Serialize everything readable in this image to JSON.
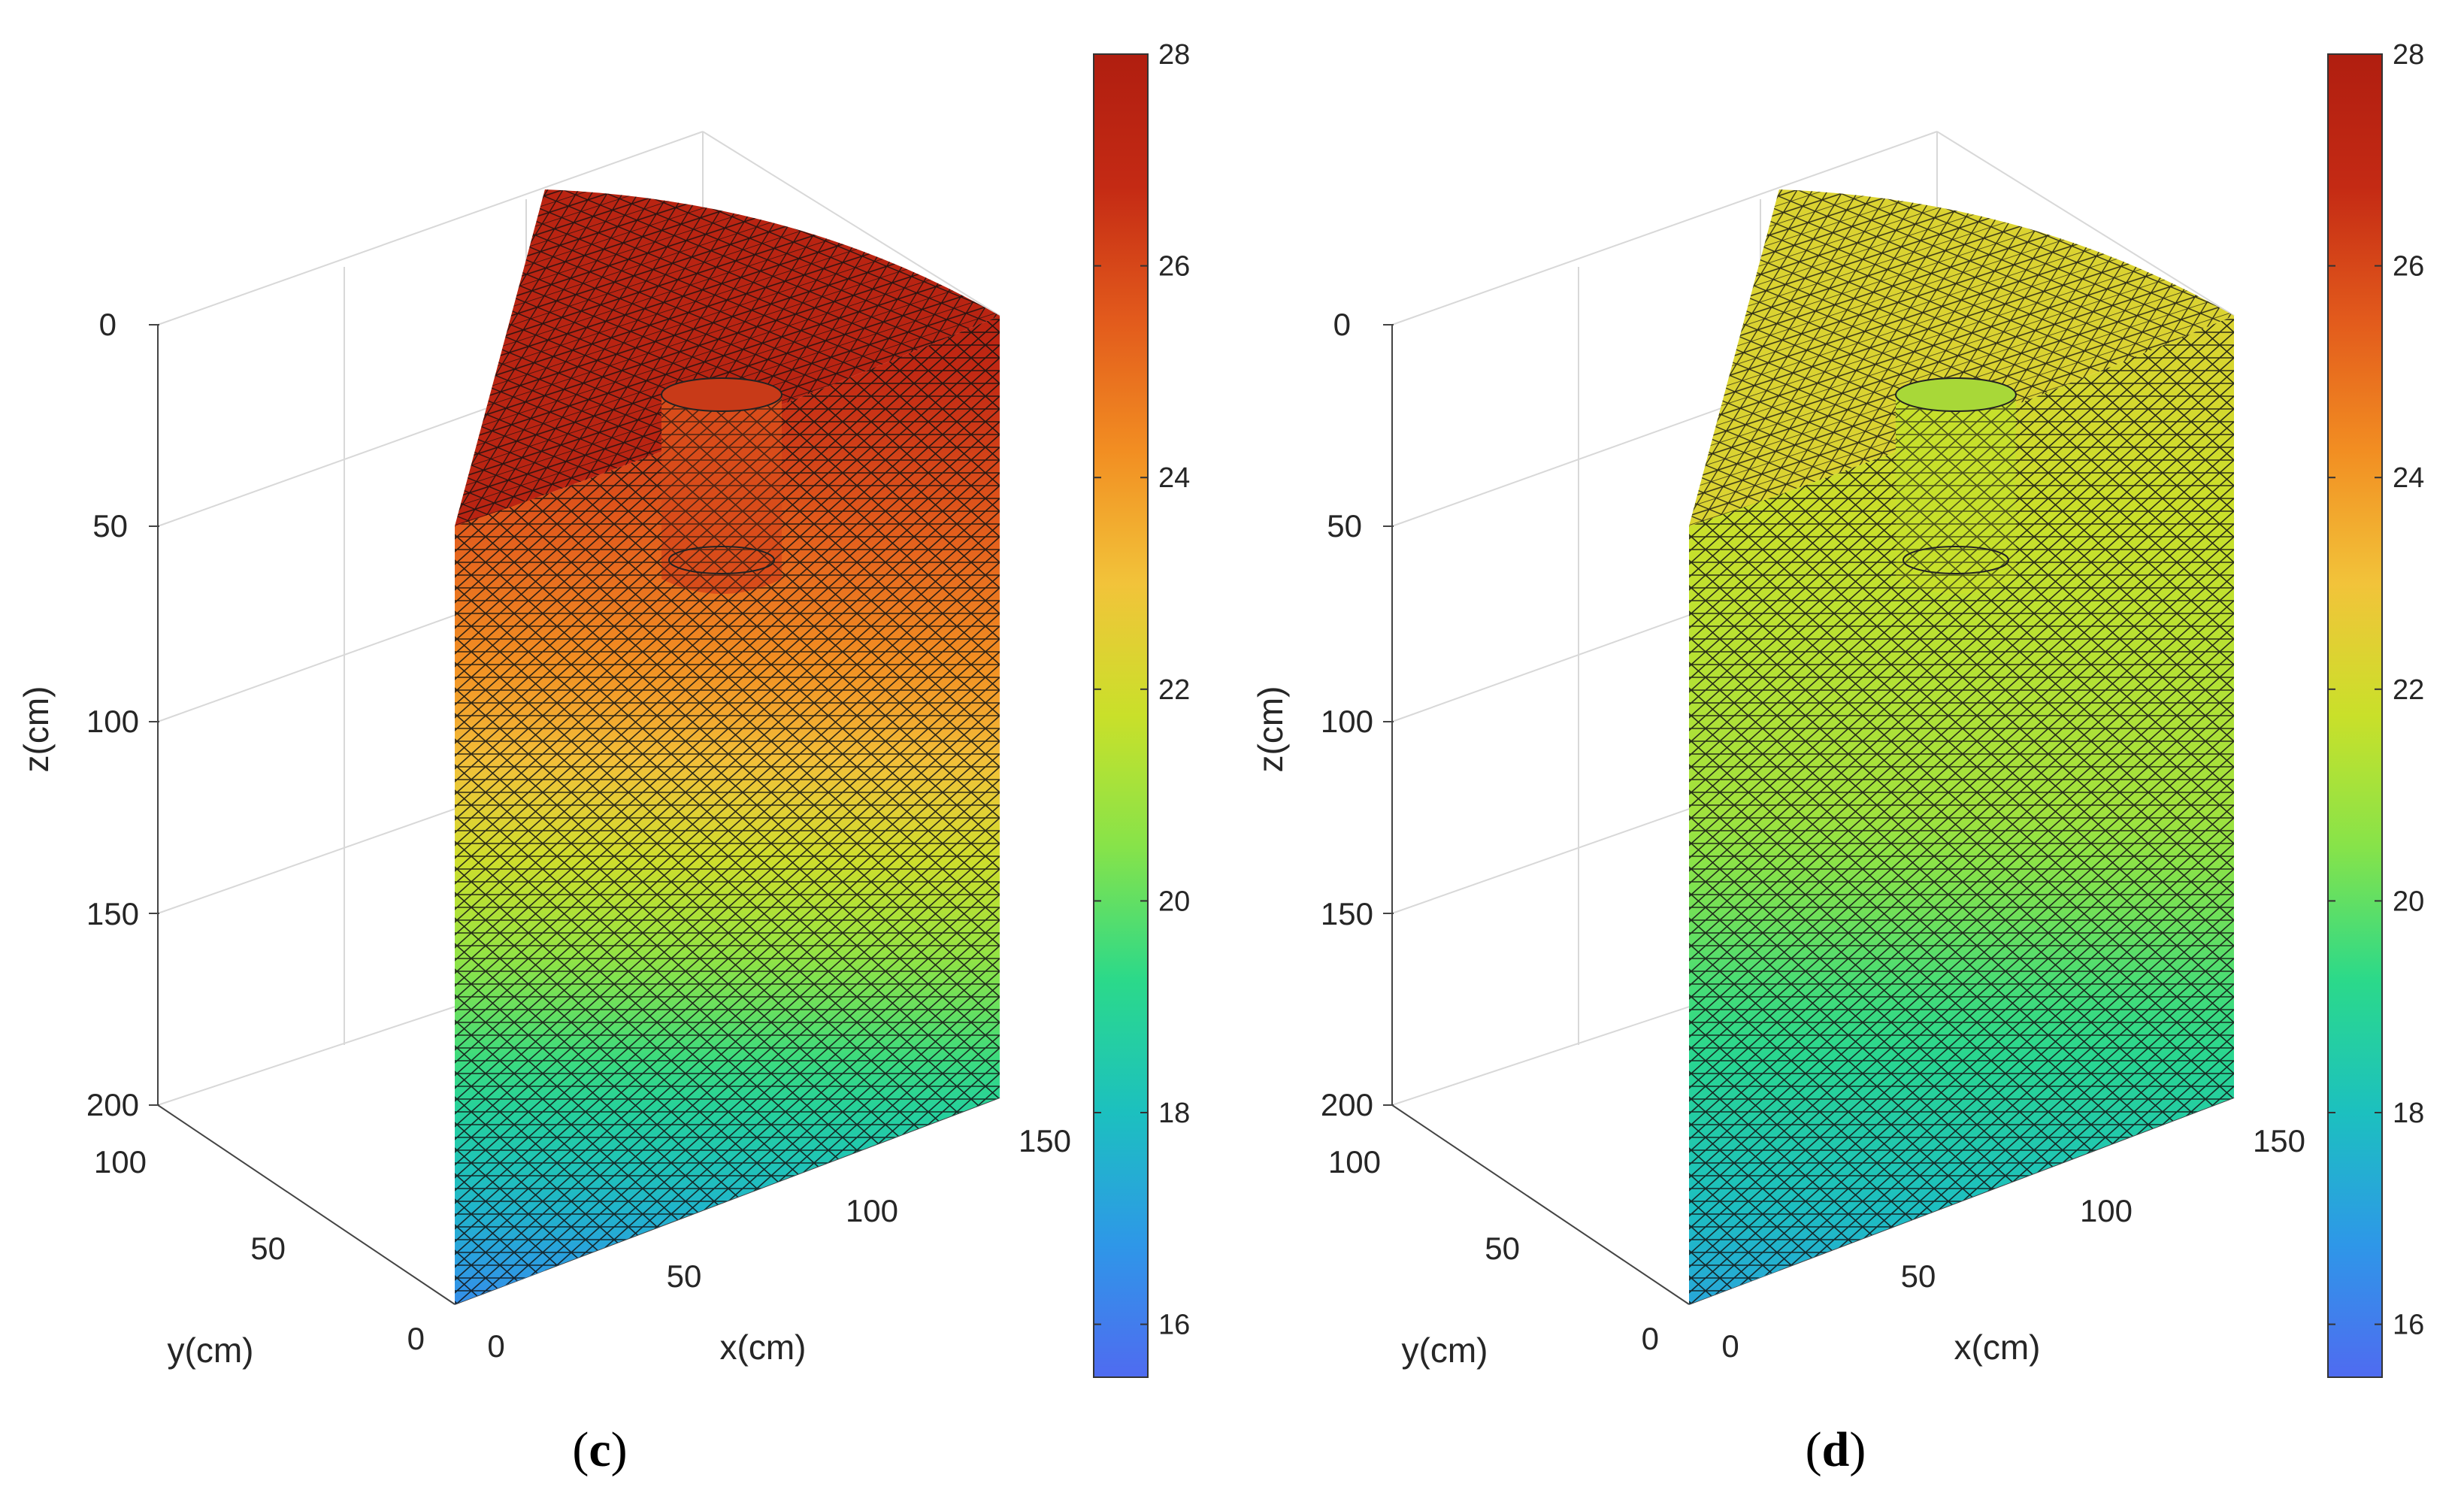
{
  "chart_data": [
    {
      "type": "surface3d",
      "panel": "c",
      "caption_open": "(",
      "caption_letter": "c",
      "caption_close": ")",
      "xlabel": "x(cm)",
      "ylabel": "y(cm)",
      "zlabel": "z(cm)",
      "x_ticks": [
        0,
        50,
        100,
        150
      ],
      "y_ticks": [
        0,
        50,
        100
      ],
      "z_ticks": [
        0,
        50,
        100,
        150,
        200
      ],
      "xlim": [
        0,
        150
      ],
      "ylim": [
        0,
        100
      ],
      "zlim": [
        0,
        200
      ],
      "colorbar_ticks": [
        16,
        18,
        20,
        22,
        24,
        26,
        28
      ],
      "clim": [
        15.5,
        28
      ],
      "colormap": [
        "#4f6bf0",
        "#2e97e8",
        "#1cc0bf",
        "#2bd98a",
        "#86e34a",
        "#c9e02a",
        "#f2c33a",
        "#f28e22",
        "#e25a1c",
        "#c42a14",
        "#b01e10"
      ],
      "temperature_profile": {
        "surface_value": 27.4,
        "depth_at_24": 75,
        "bottom_value": 16.5
      }
    },
    {
      "type": "surface3d",
      "panel": "d",
      "caption_open": "(",
      "caption_letter": "d",
      "caption_close": ")",
      "xlabel": "x(cm)",
      "ylabel": "y(cm)",
      "zlabel": "z(cm)",
      "x_ticks": [
        0,
        50,
        100,
        150
      ],
      "y_ticks": [
        0,
        50,
        100
      ],
      "z_ticks": [
        0,
        50,
        100,
        150,
        200
      ],
      "xlim": [
        0,
        150
      ],
      "ylim": [
        0,
        100
      ],
      "zlim": [
        0,
        200
      ],
      "colorbar_ticks": [
        16,
        18,
        20,
        22,
        24,
        26,
        28
      ],
      "clim": [
        15.5,
        28
      ],
      "colormap": [
        "#4f6bf0",
        "#2e97e8",
        "#1cc0bf",
        "#2bd98a",
        "#86e34a",
        "#c9e02a",
        "#f2c33a",
        "#f28e22",
        "#e25a1c",
        "#c42a14",
        "#b01e10"
      ],
      "temperature_profile": {
        "surface_value": 22.3,
        "depth_at_21": 100,
        "bottom_value": 17.2
      }
    }
  ]
}
